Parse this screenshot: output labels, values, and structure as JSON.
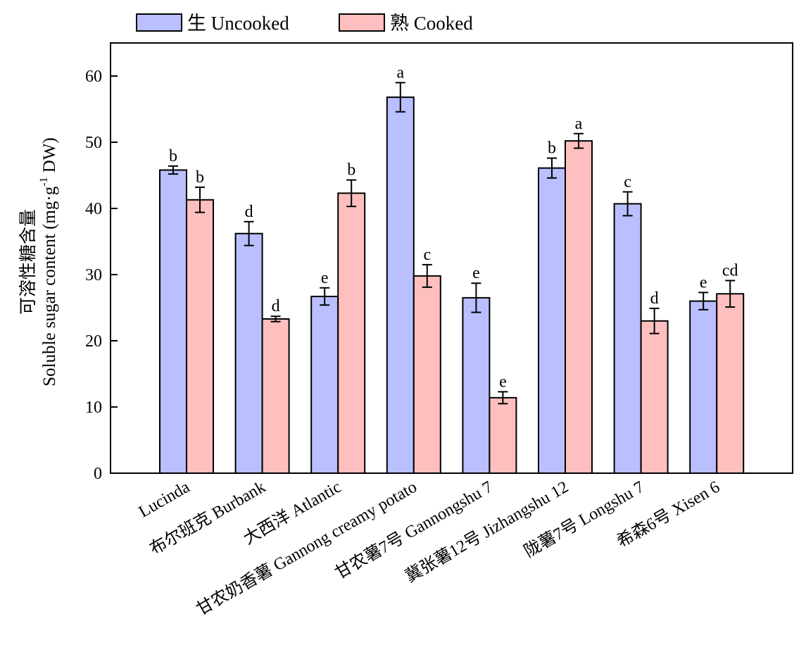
{
  "chart_data": {
    "type": "bar",
    "categories": [
      "Lucinda",
      "布尔班克 Burbank",
      "大西洋 Atlantic",
      "甘农奶香薯 Gannong creamy potato",
      "甘农薯7号 Gannongshu 7",
      "冀张薯12号 Jizhangshu 12",
      "陇薯7号 Longshu 7",
      "希森6号 Xisen 6"
    ],
    "series": [
      {
        "name": "生 Uncooked",
        "color": "#b9bfff",
        "values": [
          45.8,
          36.2,
          26.7,
          56.8,
          26.5,
          46.1,
          40.7,
          26.0
        ],
        "errors": [
          0.6,
          1.8,
          1.3,
          2.2,
          2.2,
          1.5,
          1.8,
          1.3
        ],
        "labels": [
          "b",
          "d",
          "e",
          "a",
          "e",
          "b",
          "c",
          "e"
        ]
      },
      {
        "name": "熟 Cooked",
        "color": "#ffbfbf",
        "values": [
          41.3,
          23.3,
          42.3,
          29.8,
          11.4,
          50.2,
          23.0,
          27.1
        ],
        "errors": [
          1.9,
          0.4,
          2.0,
          1.7,
          0.9,
          1.1,
          1.9,
          2.0
        ],
        "labels": [
          "b",
          "d",
          "b",
          "c",
          "e",
          "a",
          "d",
          "cd"
        ]
      }
    ],
    "ylabel_cn": "可溶性糖含量",
    "ylabel_en": "Soluble sugar content (mg·g",
    "ylabel_sup": "-1",
    "ylabel_unit": " DW)",
    "ylim": [
      0,
      65
    ],
    "yticks": [
      0,
      10,
      20,
      30,
      40,
      50,
      60
    ],
    "grid": false,
    "legend_position": "top"
  }
}
